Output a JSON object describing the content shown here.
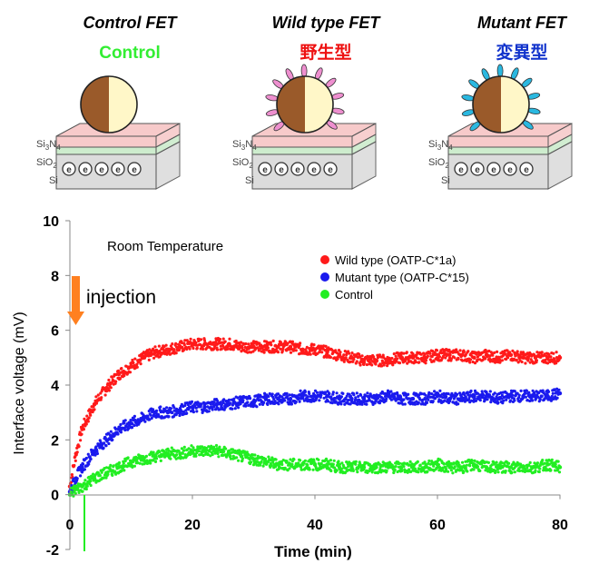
{
  "panels": [
    {
      "title": "Control FET",
      "subtitle": "Control",
      "subtitle_color": "#33ee33",
      "particle": "none"
    },
    {
      "title": "Wild type FET",
      "subtitle": "野生型",
      "subtitle_color": "#ee1111",
      "particle": "pink"
    },
    {
      "title": "Mutant FET",
      "subtitle": "変異型",
      "subtitle_color": "#1133cc",
      "particle": "cyan"
    }
  ],
  "layers": {
    "si3n4": "Si",
    "si3n4_sub3": "3",
    "si3n4_n": "N",
    "si3n4_sub4": "4",
    "sio2": "SiO",
    "sio2_sub2": "2",
    "si": "Si",
    "electron": "e"
  },
  "colors": {
    "wild": "#ff1a1a",
    "mutant": "#1a1aee",
    "control": "#22ee22",
    "nitride": "#f7caca",
    "oxide": "#cdeccd",
    "silicon": "#dcdcdc",
    "pink_bump": "#ee8fcf",
    "cyan_bump": "#2ab8e0",
    "bead_dark": "#9a5a2a",
    "bead_light": "#fff7c8",
    "arrow": "#ff8020"
  },
  "annotations": {
    "room_temp": "Room Temperature",
    "injection": "injection"
  },
  "chart_data": {
    "type": "scatter",
    "xlabel": "Time (min)",
    "ylabel": "Interface voltage (mV)",
    "xlim": [
      0,
      80
    ],
    "ylim": [
      -2,
      10
    ],
    "xticks": [
      "0",
      "20",
      "40",
      "60",
      "80"
    ],
    "yticks": [
      "-2",
      "0",
      "2",
      "4",
      "6",
      "8",
      "10"
    ],
    "legend_position": "top-right",
    "series": [
      {
        "name": "Wild type (OATP-C*1a)",
        "color": "#ff1a1a",
        "x": [
          0,
          1,
          2,
          4,
          6,
          8,
          10,
          12,
          14,
          16,
          18,
          20,
          22,
          24,
          26,
          28,
          30,
          32,
          34,
          36,
          38,
          40,
          42,
          44,
          46,
          48,
          50,
          52,
          54,
          56,
          58,
          60,
          62,
          64,
          66,
          68,
          70,
          72,
          74,
          76,
          78,
          80
        ],
        "y": [
          0.3,
          1.5,
          2.4,
          3.3,
          3.9,
          4.4,
          4.7,
          5.0,
          5.2,
          5.3,
          5.4,
          5.5,
          5.5,
          5.5,
          5.5,
          5.4,
          5.4,
          5.4,
          5.4,
          5.4,
          5.3,
          5.3,
          5.2,
          5.1,
          5.0,
          4.9,
          4.9,
          4.9,
          5.0,
          5.0,
          5.0,
          5.1,
          5.1,
          5.1,
          5.0,
          5.1,
          5.0,
          5.1,
          5.0,
          5.0,
          5.0,
          5.0
        ]
      },
      {
        "name": "Mutant type (OATP-C*15)",
        "color": "#1a1aee",
        "x": [
          0,
          1,
          2,
          4,
          6,
          8,
          10,
          12,
          14,
          16,
          18,
          20,
          22,
          24,
          26,
          28,
          30,
          32,
          34,
          36,
          38,
          40,
          42,
          44,
          46,
          48,
          50,
          52,
          54,
          56,
          58,
          60,
          62,
          64,
          66,
          68,
          70,
          72,
          74,
          76,
          78,
          80
        ],
        "y": [
          0.1,
          0.6,
          1.0,
          1.6,
          2.0,
          2.4,
          2.6,
          2.8,
          3.0,
          3.0,
          3.1,
          3.2,
          3.2,
          3.3,
          3.3,
          3.4,
          3.4,
          3.5,
          3.5,
          3.5,
          3.6,
          3.6,
          3.6,
          3.5,
          3.5,
          3.5,
          3.5,
          3.6,
          3.5,
          3.5,
          3.5,
          3.6,
          3.5,
          3.5,
          3.6,
          3.6,
          3.5,
          3.6,
          3.6,
          3.6,
          3.6,
          3.7
        ]
      },
      {
        "name": "Control",
        "color": "#22ee22",
        "x": [
          0,
          1,
          2,
          4,
          6,
          8,
          10,
          12,
          14,
          16,
          18,
          20,
          22,
          24,
          26,
          28,
          30,
          32,
          34,
          36,
          38,
          40,
          42,
          44,
          46,
          48,
          50,
          52,
          54,
          56,
          58,
          60,
          62,
          64,
          66,
          68,
          70,
          72,
          74,
          76,
          78,
          80
        ],
        "y": [
          0.0,
          0.2,
          0.3,
          0.6,
          0.8,
          1.0,
          1.2,
          1.3,
          1.4,
          1.5,
          1.5,
          1.6,
          1.6,
          1.6,
          1.5,
          1.4,
          1.3,
          1.2,
          1.1,
          1.1,
          1.1,
          1.1,
          1.1,
          1.0,
          1.0,
          1.0,
          1.0,
          1.0,
          1.0,
          1.0,
          1.0,
          1.1,
          1.0,
          1.0,
          1.1,
          1.0,
          1.0,
          1.0,
          1.0,
          1.0,
          1.1,
          1.0
        ]
      }
    ]
  }
}
